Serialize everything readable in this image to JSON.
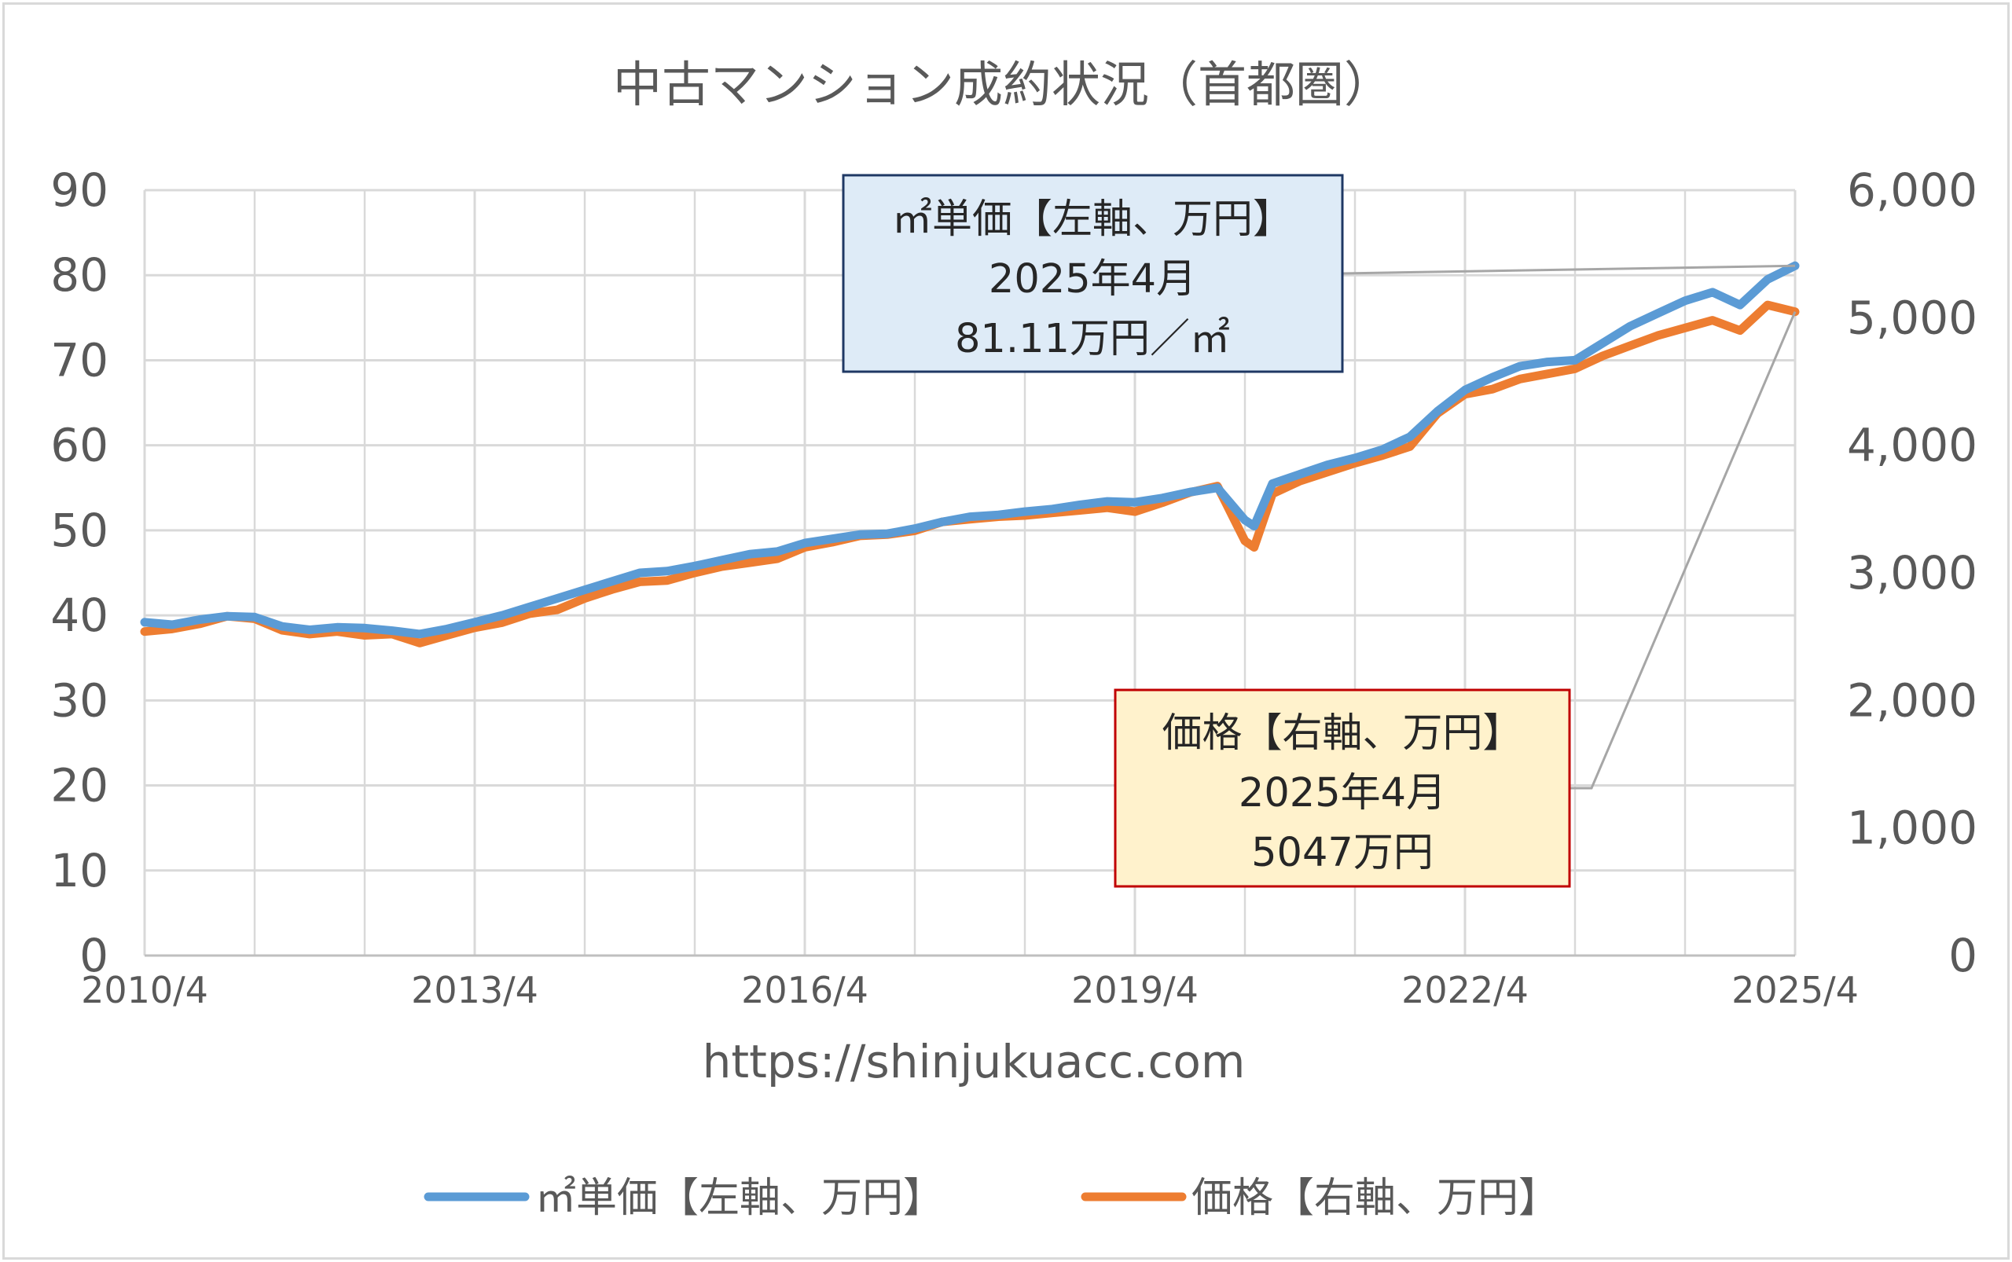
{
  "chart_data": {
    "type": "line",
    "title": "中古マンション成約状況（首都圏）",
    "source_text": "https://shinjukuacc.com",
    "x_ticks": [
      "2010/4",
      "2013/4",
      "2016/4",
      "2019/4",
      "2022/4",
      "2025/4"
    ],
    "x_range": [
      "2010/4",
      "2025/4"
    ],
    "y_left": {
      "range": [
        0,
        90
      ],
      "ticks": [
        "0",
        "10",
        "20",
        "30",
        "40",
        "50",
        "60",
        "70",
        "80",
        "90"
      ]
    },
    "y_right": {
      "range": [
        0,
        6000
      ],
      "ticks": [
        "0",
        "1,000",
        "2,000",
        "3,000",
        "4,000",
        "5,000",
        "6,000"
      ]
    },
    "grid": true,
    "legend_position": "bottom",
    "colors": {
      "unit_price": "#5b9bd5",
      "price": "#ed7d31",
      "callout1_fill": "#deebf7",
      "callout1_border": "#1f3864",
      "callout2_fill": "#fff2cc",
      "callout2_border": "#c00000"
    },
    "series": [
      {
        "name": "㎡単価【左軸、万円】",
        "axis": "left",
        "x": [
          "2010/4",
          "2010/7",
          "2010/10",
          "2011/1",
          "2011/4",
          "2011/7",
          "2011/10",
          "2012/1",
          "2012/4",
          "2012/7",
          "2012/10",
          "2013/1",
          "2013/4",
          "2013/7",
          "2013/10",
          "2014/1",
          "2014/4",
          "2014/7",
          "2014/10",
          "2015/1",
          "2015/4",
          "2015/7",
          "2015/10",
          "2016/1",
          "2016/4",
          "2016/7",
          "2016/10",
          "2017/1",
          "2017/4",
          "2017/7",
          "2017/10",
          "2018/1",
          "2018/4",
          "2018/7",
          "2018/10",
          "2019/1",
          "2019/4",
          "2019/7",
          "2019/10",
          "2020/1",
          "2020/4",
          "2020/5",
          "2020/7",
          "2020/10",
          "2021/1",
          "2021/4",
          "2021/7",
          "2021/10",
          "2022/1",
          "2022/4",
          "2022/7",
          "2022/10",
          "2023/1",
          "2023/4",
          "2023/7",
          "2023/10",
          "2024/1",
          "2024/4",
          "2024/7",
          "2024/10",
          "2025/1",
          "2025/4"
        ],
        "values": [
          39.2,
          38.9,
          39.5,
          39.9,
          39.8,
          38.7,
          38.3,
          38.6,
          38.5,
          38.2,
          37.8,
          38.4,
          39.2,
          40.0,
          41.0,
          42.0,
          43.0,
          44.0,
          45.0,
          45.2,
          45.8,
          46.5,
          47.2,
          47.5,
          48.5,
          49.0,
          49.5,
          49.6,
          50.2,
          51.0,
          51.6,
          51.8,
          52.2,
          52.5,
          53.0,
          53.4,
          53.3,
          53.8,
          54.5,
          55.0,
          51.2,
          50.5,
          55.5,
          56.6,
          57.7,
          58.5,
          59.5,
          61.0,
          64.0,
          66.5,
          68.0,
          69.3,
          69.8,
          70.0,
          72.0,
          74.0,
          75.5,
          77.0,
          78.0,
          76.5,
          79.5,
          81.11
        ]
      },
      {
        "name": "価格【右軸、万円】",
        "axis": "right",
        "x": [
          "2010/4",
          "2010/7",
          "2010/10",
          "2011/1",
          "2011/4",
          "2011/7",
          "2011/10",
          "2012/1",
          "2012/4",
          "2012/7",
          "2012/10",
          "2013/1",
          "2013/4",
          "2013/7",
          "2013/10",
          "2014/1",
          "2014/4",
          "2014/7",
          "2014/10",
          "2015/1",
          "2015/4",
          "2015/7",
          "2015/10",
          "2016/1",
          "2016/4",
          "2016/7",
          "2016/10",
          "2017/1",
          "2017/4",
          "2017/7",
          "2017/10",
          "2018/1",
          "2018/4",
          "2018/7",
          "2018/10",
          "2019/1",
          "2019/4",
          "2019/7",
          "2019/10",
          "2020/1",
          "2020/4",
          "2020/5",
          "2020/7",
          "2020/10",
          "2021/1",
          "2021/4",
          "2021/7",
          "2021/10",
          "2022/1",
          "2022/4",
          "2022/7",
          "2022/10",
          "2023/1",
          "2023/4",
          "2023/7",
          "2023/10",
          "2024/1",
          "2024/4",
          "2024/7",
          "2024/10",
          "2025/1",
          "2025/4"
        ],
        "values": [
          2540,
          2560,
          2600,
          2660,
          2640,
          2550,
          2520,
          2540,
          2510,
          2520,
          2450,
          2510,
          2570,
          2610,
          2680,
          2710,
          2800,
          2870,
          2930,
          2940,
          3000,
          3050,
          3080,
          3110,
          3200,
          3240,
          3290,
          3300,
          3330,
          3400,
          3420,
          3440,
          3450,
          3470,
          3490,
          3510,
          3480,
          3550,
          3630,
          3680,
          3250,
          3200,
          3620,
          3720,
          3790,
          3860,
          3920,
          3990,
          4250,
          4400,
          4440,
          4520,
          4560,
          4600,
          4700,
          4780,
          4860,
          4920,
          4980,
          4900,
          5100,
          5047
        ]
      }
    ],
    "annotations": [
      {
        "target": "㎡単価【左軸、万円】",
        "lines": [
          "㎡単価【左軸、万円】",
          "2025年4月",
          "81.11万円／㎡"
        ]
      },
      {
        "target": "価格【右軸、万円】",
        "lines": [
          "価格【右軸、万円】",
          "2025年4月",
          "5047万円"
        ]
      }
    ]
  }
}
